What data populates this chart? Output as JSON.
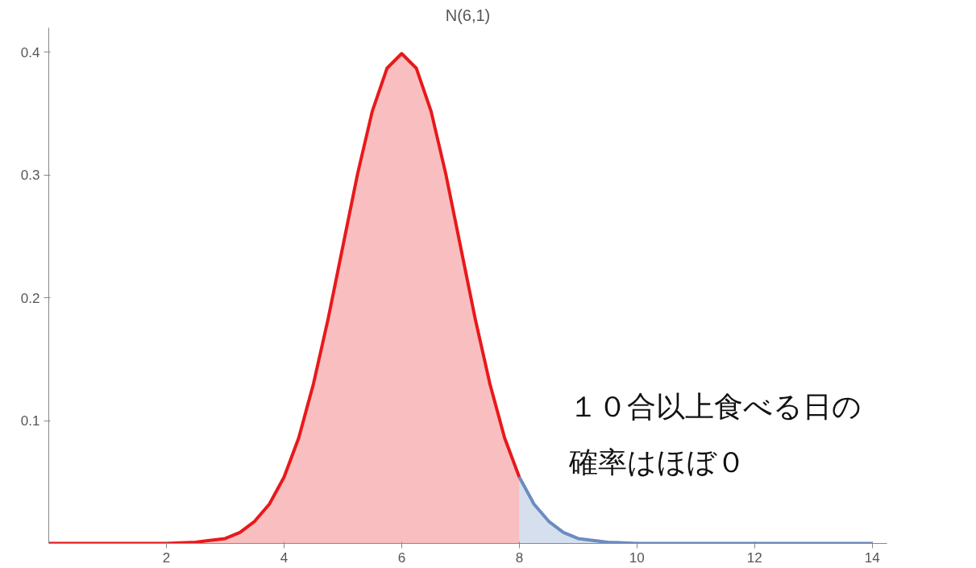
{
  "chart_data": {
    "type": "area",
    "title": "N(6,1)",
    "xlim": [
      0,
      14.25
    ],
    "ylim": [
      0,
      0.42
    ],
    "xticks": [
      2,
      4,
      6,
      8,
      10,
      12,
      14
    ],
    "yticks": [
      0.1,
      0.2,
      0.3,
      0.4
    ],
    "grid": false,
    "series": [
      {
        "color": "#e8191b",
        "x": [
          0,
          1,
          2,
          2.5,
          3,
          3.25,
          3.5,
          3.75,
          4,
          4.25,
          4.5,
          4.75,
          5,
          5.25,
          5.5,
          5.75,
          6,
          6.25,
          6.5,
          6.75,
          7,
          7.25,
          7.5,
          7.75,
          8
        ],
        "values": [
          0,
          0,
          0,
          0.001,
          0.004,
          0.009,
          0.018,
          0.032,
          0.054,
          0.086,
          0.13,
          0.183,
          0.242,
          0.301,
          0.352,
          0.387,
          0.399,
          0.387,
          0.352,
          0.301,
          0.242,
          0.183,
          0.13,
          0.086,
          0.054
        ]
      },
      {
        "color": "#6b8cc0",
        "x": [
          8,
          8.25,
          8.5,
          8.75,
          9,
          9.5,
          10,
          11,
          12,
          13,
          14
        ],
        "values": [
          0.054,
          0.032,
          0.018,
          0.009,
          0.004,
          0.001,
          0,
          0,
          0,
          0,
          0
        ]
      }
    ],
    "annotations": [
      "１０合以上食べる日の",
      "確率はほぼ０"
    ]
  }
}
